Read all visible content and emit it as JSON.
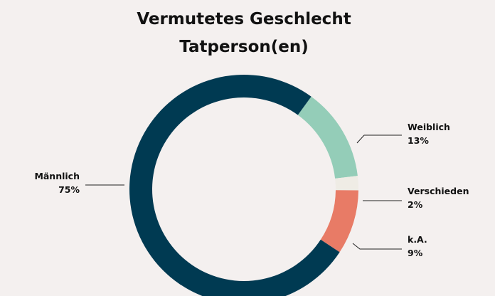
{
  "chart_data": {
    "type": "donut",
    "title": [
      "Vermutetes Geschlecht",
      "Tatperson(en)"
    ],
    "categories": [
      "Weiblich",
      "Verschieden",
      "k.A.",
      "Männlich"
    ],
    "values": [
      13,
      2,
      9,
      75
    ],
    "value_labels": [
      "13%",
      "2%",
      "9%",
      "75%"
    ],
    "colors": [
      "#94cdb8",
      "#efece5",
      "#e87b66",
      "#003a52"
    ]
  }
}
